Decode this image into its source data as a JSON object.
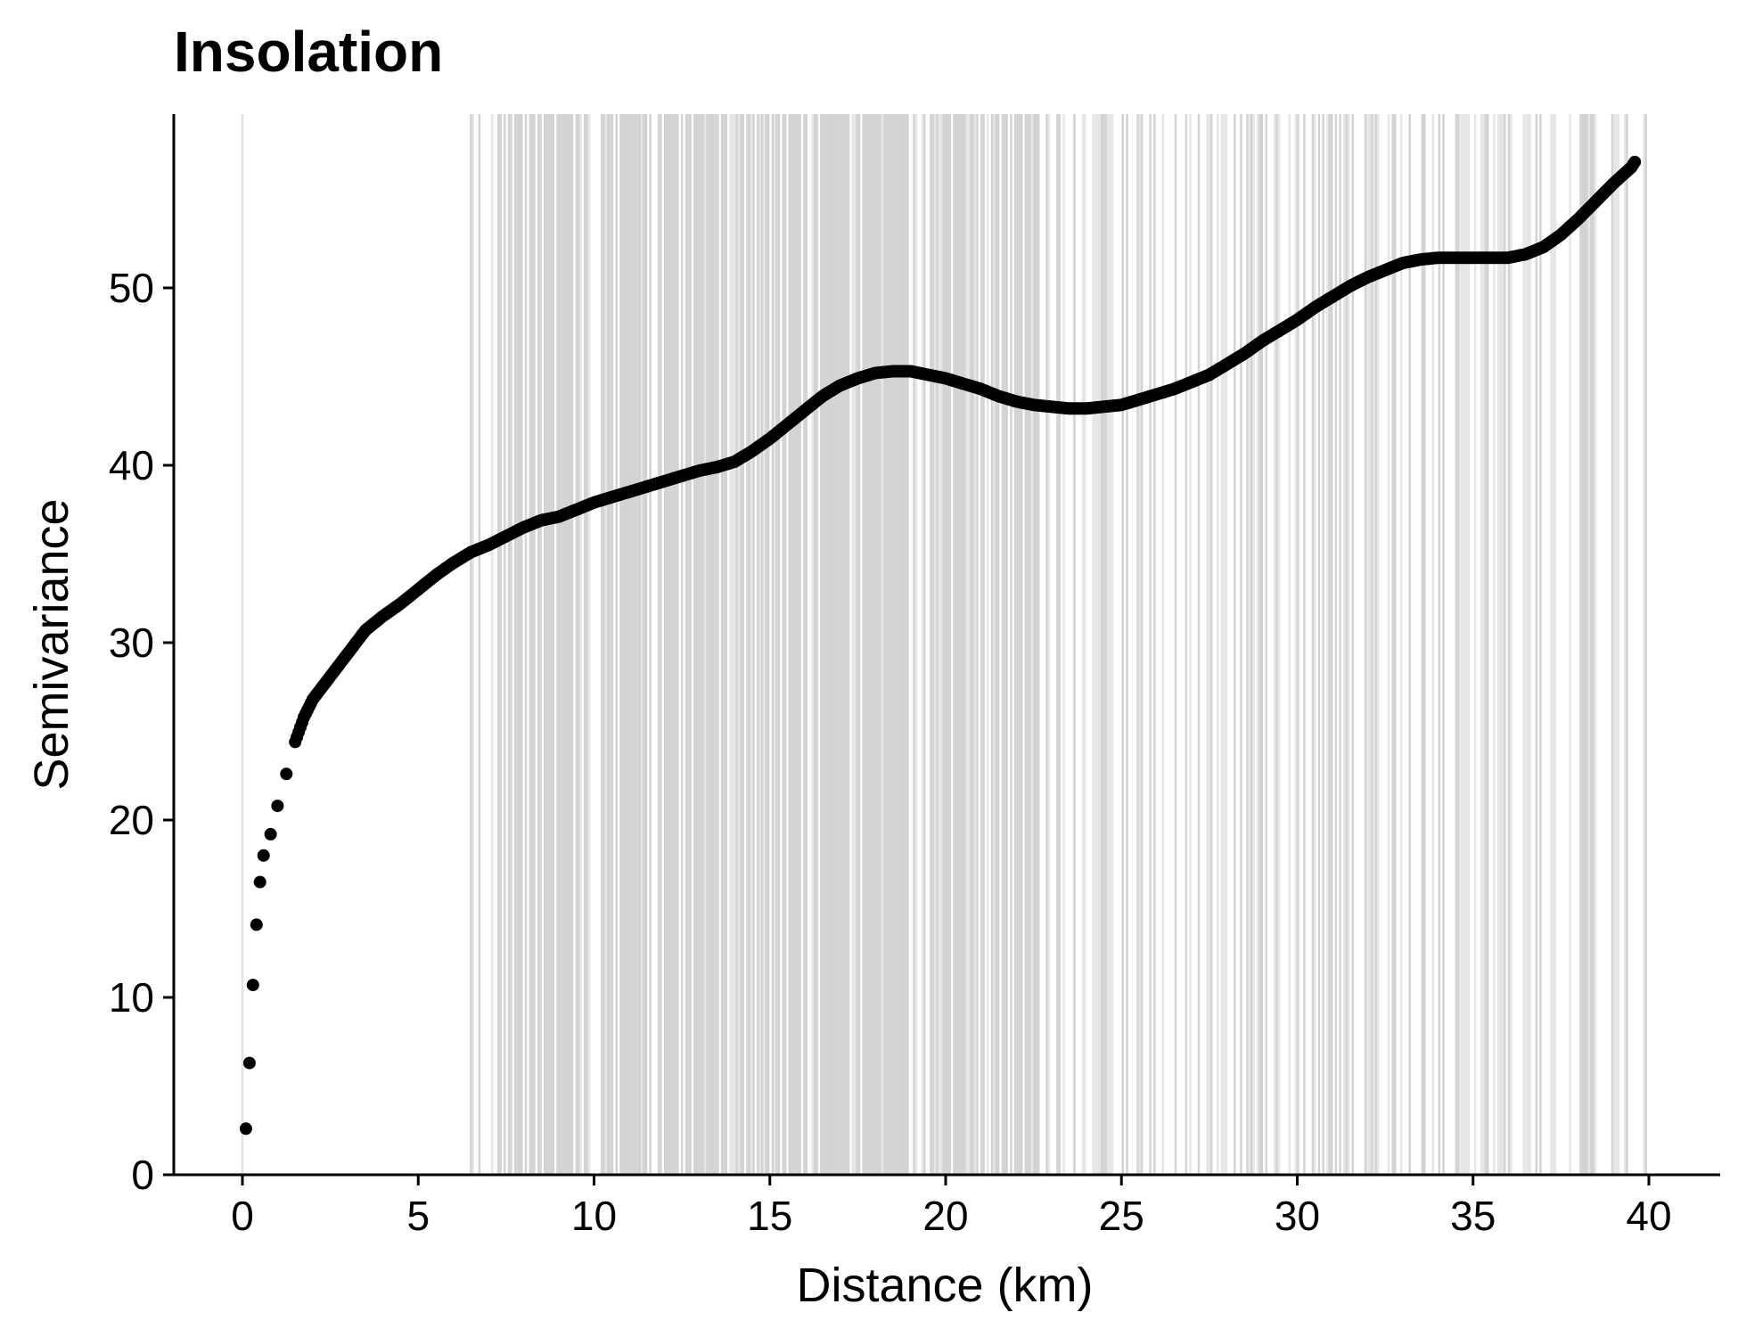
{
  "chart_data": {
    "type": "scatter",
    "title": "Insolation",
    "xlabel": "Distance (km)",
    "ylabel": "Semivariance",
    "xlim": [
      -2,
      42
    ],
    "ylim": [
      0,
      60
    ],
    "xticks": [
      0,
      5,
      10,
      15,
      20,
      25,
      30,
      35,
      40
    ],
    "yticks": [
      0,
      10,
      20,
      30,
      40,
      50
    ],
    "xtick_labels": [
      "0",
      "5",
      "10",
      "15",
      "20",
      "25",
      "30",
      "35",
      "40"
    ],
    "ytick_labels": [
      "0",
      "10",
      "20",
      "30",
      "40",
      "50"
    ],
    "grid": false,
    "legend": "none",
    "colors": {
      "points": "#000000",
      "band": "#d3d3d3",
      "band_light": "#e6e6e6",
      "axis": "#000000"
    },
    "background_band": {
      "description_shown": "many thin vertical grey lines",
      "x_range": [
        6.5,
        40
      ],
      "dense_range": [
        7.5,
        22.8
      ],
      "extra_line_x": [
        0
      ]
    },
    "series": [
      {
        "marker": "point",
        "x": [
          0.1,
          0.2,
          0.3,
          0.4,
          0.5,
          0.6,
          0.8,
          1.0,
          1.25,
          1.5,
          1.75,
          2.0,
          2.5,
          3.0,
          3.5,
          4.0,
          4.5,
          5.0,
          5.5,
          6.0,
          6.5,
          7.0,
          7.5,
          8.0,
          8.5,
          9.0,
          9.5,
          10.0,
          10.5,
          11.0,
          11.5,
          12.0,
          12.5,
          13.0,
          13.5,
          14.0,
          14.5,
          15.0,
          15.5,
          16.0,
          16.5,
          17.0,
          17.5,
          18.0,
          18.5,
          19.0,
          19.5,
          20.0,
          20.5,
          21.0,
          21.5,
          22.0,
          22.5,
          23.0,
          23.5,
          24.0,
          24.5,
          25.0,
          25.5,
          26.0,
          26.5,
          27.0,
          27.5,
          28.0,
          28.5,
          29.0,
          29.5,
          30.0,
          30.5,
          31.0,
          31.5,
          32.0,
          32.5,
          33.0,
          33.5,
          34.0,
          34.5,
          35.0,
          35.5,
          36.0,
          36.5,
          37.0,
          37.5,
          38.0,
          38.5,
          39.0,
          39.5,
          39.6
        ],
        "y": [
          2.6,
          6.3,
          10.7,
          14.1,
          16.5,
          18.0,
          19.2,
          20.8,
          22.6,
          24.4,
          25.8,
          26.8,
          28.1,
          29.4,
          30.7,
          31.5,
          32.2,
          33.0,
          33.8,
          34.5,
          35.1,
          35.5,
          36.0,
          36.5,
          36.9,
          37.1,
          37.5,
          37.9,
          38.2,
          38.5,
          38.8,
          39.1,
          39.4,
          39.7,
          39.9,
          40.2,
          40.8,
          41.5,
          42.3,
          43.1,
          43.9,
          44.5,
          44.9,
          45.2,
          45.3,
          45.3,
          45.1,
          44.9,
          44.6,
          44.3,
          43.9,
          43.6,
          43.4,
          43.3,
          43.2,
          43.2,
          43.3,
          43.4,
          43.7,
          44.0,
          44.3,
          44.7,
          45.1,
          45.7,
          46.3,
          47.0,
          47.6,
          48.2,
          48.9,
          49.5,
          50.1,
          50.6,
          51.0,
          51.4,
          51.6,
          51.7,
          51.7,
          51.7,
          51.7,
          51.7,
          51.9,
          52.3,
          53.0,
          53.9,
          54.9,
          55.9,
          56.8,
          57.1
        ]
      }
    ]
  }
}
